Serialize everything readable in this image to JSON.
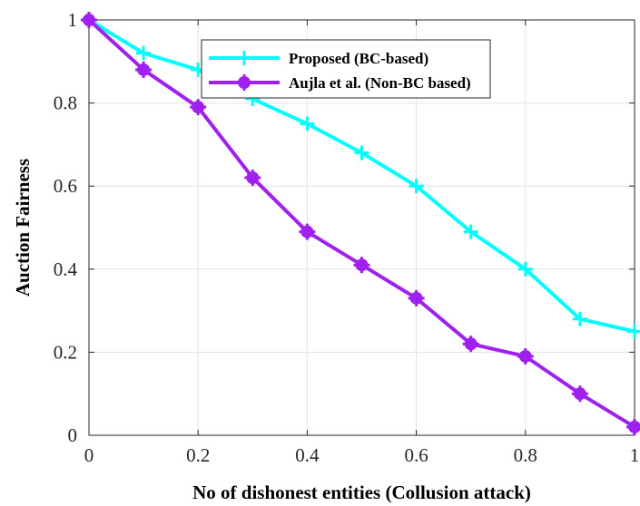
{
  "chart_data": {
    "type": "line",
    "title": "",
    "xlabel": "No of dishonest entities (Collusion attack)",
    "ylabel": "Auction Fairness",
    "xlim": [
      0,
      1
    ],
    "ylim": [
      0,
      1
    ],
    "grid": true,
    "legend_position": "top-right",
    "x": [
      0,
      0.1,
      0.2,
      0.3,
      0.4,
      0.5,
      0.6,
      0.7,
      0.8,
      0.9,
      1.0
    ],
    "xticks": [
      "0",
      "0.2",
      "0.4",
      "0.6",
      "0.8",
      "1"
    ],
    "yticks": [
      "0",
      "0.2",
      "0.4",
      "0.6",
      "0.8",
      "1"
    ],
    "series": [
      {
        "name": "Proposed (BC-based)",
        "color": "#00ffff",
        "marker": "plus",
        "values": [
          1.0,
          0.92,
          0.88,
          0.81,
          0.75,
          0.68,
          0.6,
          0.49,
          0.4,
          0.28,
          0.25
        ]
      },
      {
        "name": "Aujla et al. (Non-BC based)",
        "color": "#a020f0",
        "marker": "circle-plus",
        "values": [
          1.0,
          0.88,
          0.79,
          0.62,
          0.49,
          0.41,
          0.33,
          0.22,
          0.19,
          0.1,
          0.02
        ]
      }
    ]
  }
}
